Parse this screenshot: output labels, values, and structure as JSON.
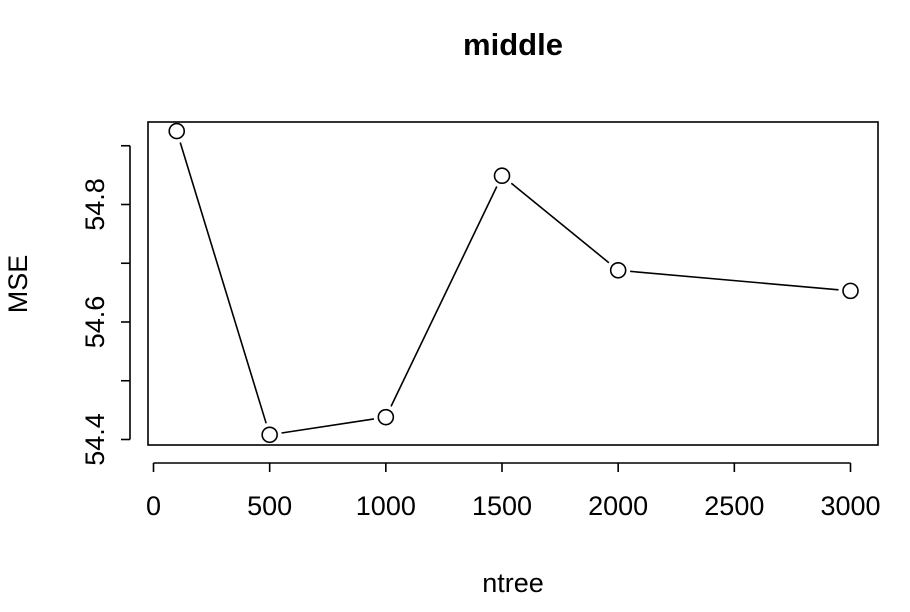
{
  "chart_data": {
    "type": "line",
    "title": "middle",
    "xlabel": "ntree",
    "ylabel": "MSE",
    "x": [
      100,
      500,
      1000,
      1500,
      2000,
      3000
    ],
    "y": [
      54.925,
      54.408,
      54.438,
      54.849,
      54.688,
      54.653
    ],
    "xlim": [
      0,
      3100
    ],
    "ylim": [
      54.4,
      54.95
    ],
    "xticks": [
      0,
      500,
      1000,
      1500,
      2000,
      2500,
      3000
    ],
    "xtick_labels": [
      "0",
      "500",
      "1000",
      "1500",
      "2000",
      "2500",
      "3000"
    ],
    "yticks": [
      54.4,
      54.5,
      54.6,
      54.7,
      54.8,
      54.9
    ],
    "ytick_labels": [
      "54.4",
      "",
      "54.6",
      "",
      "54.8",
      ""
    ],
    "markers": "open-circle",
    "grid": false,
    "legend": "none"
  }
}
